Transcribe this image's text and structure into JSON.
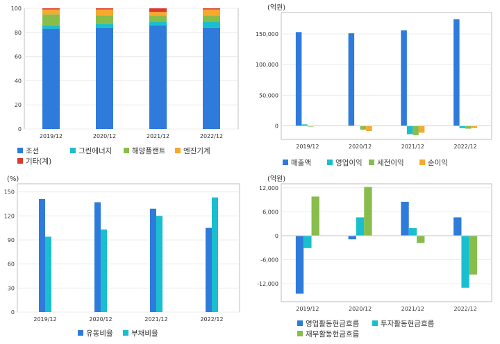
{
  "chart_data": [
    {
      "id": "revenue-composition",
      "type": "bar",
      "stacked": true,
      "categories": [
        "2019/12",
        "2020/12",
        "2021/12",
        "2022/12"
      ],
      "series": [
        {
          "name": "조선",
          "color": "#2e7bdb",
          "values": [
            83,
            84,
            86,
            84
          ]
        },
        {
          "name": "그린에너지",
          "color": "#19bfcf",
          "values": [
            3,
            3,
            3,
            5
          ]
        },
        {
          "name": "해양플랜트",
          "color": "#88bd4c",
          "values": [
            9,
            7,
            5,
            5
          ]
        },
        {
          "name": "엔진기계",
          "color": "#f6a92d",
          "values": [
            4,
            5,
            3,
            5
          ]
        },
        {
          "name": "기타(계)",
          "color": "#d93a2b",
          "values": [
            1,
            1,
            3,
            1
          ]
        }
      ],
      "yticks": [
        "0",
        "20",
        "40",
        "60",
        "80",
        "100"
      ],
      "ylim": [
        0,
        100
      ],
      "unit": "",
      "legend_position": "bottom",
      "grid": true
    },
    {
      "id": "income",
      "type": "bar",
      "categories": [
        "2019/12",
        "2020/12",
        "2021/12",
        "2022/12"
      ],
      "series": [
        {
          "name": "매출액",
          "color": "#2e7bdb",
          "values": [
            153000,
            151000,
            156000,
            174000
          ]
        },
        {
          "name": "영업이익",
          "color": "#19bfcf",
          "values": [
            2500,
            700,
            -13500,
            -3600
          ]
        },
        {
          "name": "세전이익",
          "color": "#88bd4c",
          "values": [
            -400,
            -6000,
            -15000,
            -4500
          ]
        },
        {
          "name": "순이익",
          "color": "#f6a92d",
          "values": [
            700,
            -8500,
            -11000,
            -3500
          ]
        }
      ],
      "yticks": [
        "0",
        "50,000",
        "100,000",
        "150,000"
      ],
      "ylim": [
        -22000,
        185000
      ],
      "unit": "(억원)",
      "legend_position": "bottom",
      "grid": true
    },
    {
      "id": "ratios",
      "type": "bar",
      "categories": [
        "2019/12",
        "2020/12",
        "2021/12",
        "2022/12"
      ],
      "series": [
        {
          "name": "유동비율",
          "color": "#2e7bdb",
          "values": [
            141,
            137,
            129,
            105
          ]
        },
        {
          "name": "부채비율",
          "color": "#19bfcf",
          "values": [
            94,
            103,
            120,
            143
          ]
        }
      ],
      "yticks": [
        "0",
        "30",
        "60",
        "90",
        "120",
        "150"
      ],
      "ylim": [
        0,
        160
      ],
      "unit": "(%)",
      "legend_position": "bottom",
      "grid": true
    },
    {
      "id": "cashflow",
      "type": "bar",
      "categories": [
        "2019/12",
        "2020/12",
        "2021/12",
        "2022/12"
      ],
      "series": [
        {
          "name": "영업활동현금흐름",
          "color": "#2e7bdb",
          "values": [
            -14500,
            -900,
            8500,
            4600
          ]
        },
        {
          "name": "투자활동현금흐름",
          "color": "#19bfcf",
          "values": [
            -3100,
            4600,
            1900,
            -13000
          ]
        },
        {
          "name": "재무활동현금흐름",
          "color": "#88bd4c",
          "values": [
            9800,
            12200,
            -1800,
            -9700
          ]
        }
      ],
      "yticks": [
        "-12,000",
        "-6,000",
        "0",
        "6,000",
        "12,000"
      ],
      "ylim": [
        -16500,
        13000
      ],
      "unit": "(억원)",
      "legend_position": "bottom",
      "grid": true
    }
  ]
}
